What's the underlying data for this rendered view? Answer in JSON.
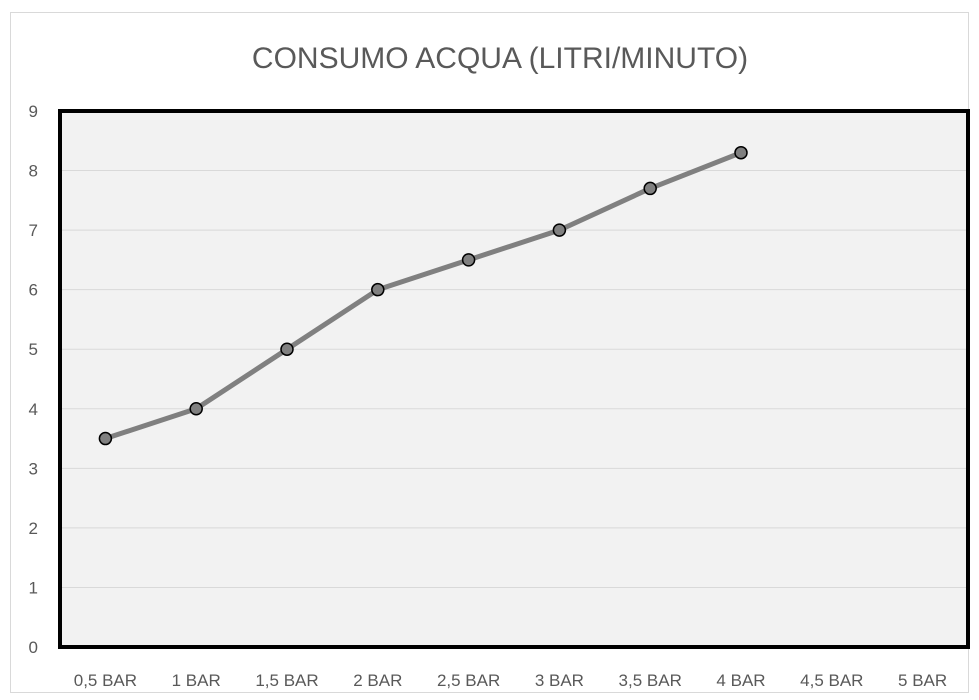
{
  "chart_data": {
    "type": "line",
    "title": "CONSUMO ACQUA (LITRI/MINUTO)",
    "xlabel": "",
    "ylabel": "",
    "categories": [
      "0,5 BAR",
      "1 BAR",
      "1,5 BAR",
      "2 BAR",
      "2,5 BAR",
      "3 BAR",
      "3,5 BAR",
      "4 BAR",
      "4,5 BAR",
      "5 BAR"
    ],
    "series": [
      {
        "values": [
          3.5,
          4,
          5,
          6,
          6.5,
          7,
          7.7,
          8.3,
          null,
          null
        ]
      }
    ],
    "ylim": [
      0,
      9
    ],
    "yticks": [
      0,
      1,
      2,
      3,
      4,
      5,
      6,
      7,
      8,
      9
    ],
    "grid": true,
    "legend": "none",
    "colors": {
      "line": "#808080",
      "marker_fill": "#808080",
      "marker_stroke": "#000000",
      "plot_background": "#f2f2f2",
      "plot_border": "#000000",
      "gridline": "#d9d9d9",
      "text": "#595959"
    }
  }
}
